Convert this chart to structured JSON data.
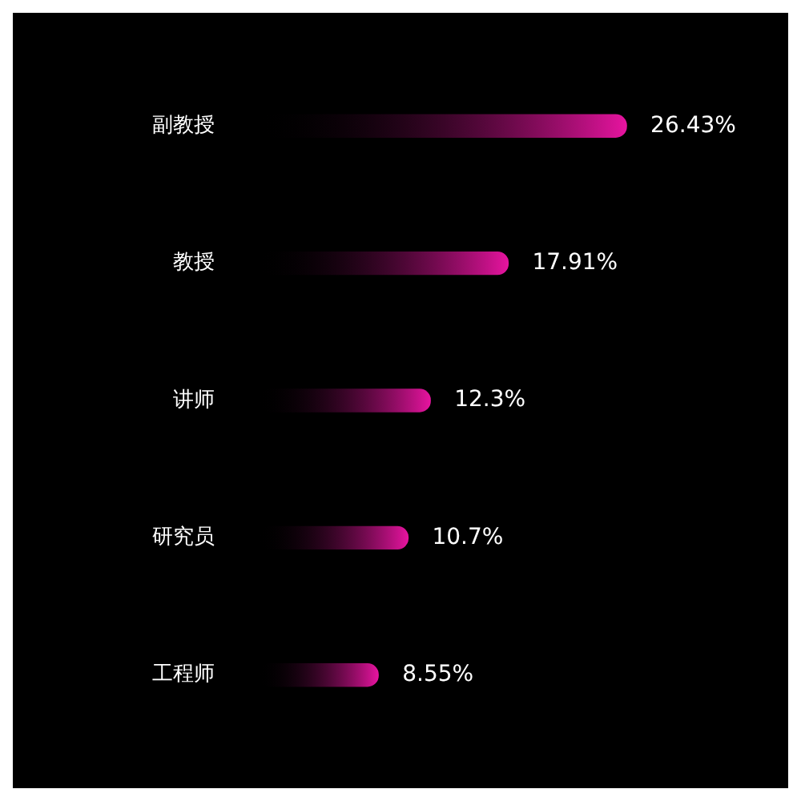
{
  "chart_data": {
    "type": "bar",
    "orientation": "horizontal",
    "categories": [
      "副教授",
      "教授",
      "讲师",
      "研究员",
      "工程师"
    ],
    "values": [
      26.43,
      17.91,
      12.3,
      10.7,
      8.55
    ],
    "value_labels": [
      "26.43%",
      "17.91%",
      "12.3%",
      "10.7%",
      "8.55%"
    ],
    "color": "#e6149f",
    "tick_labels": "y"
  }
}
